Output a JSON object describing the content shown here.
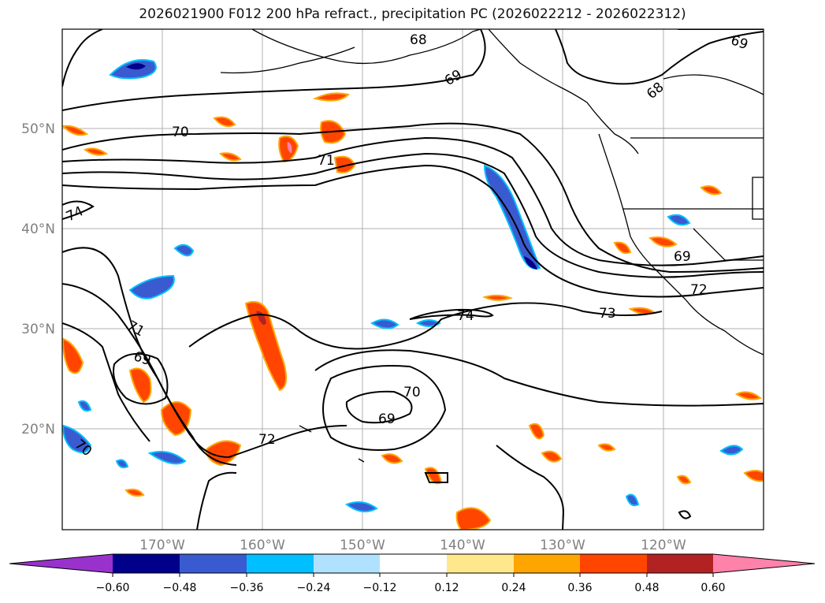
{
  "title": "2026021900 F012 200 hPa refract., precipitation PC (2026022212 - 2026022312)",
  "lat_labels": [
    "50°N",
    "40°N",
    "30°N",
    "20°N"
  ],
  "lon_labels": [
    "170°W",
    "160°W",
    "150°W",
    "140°W",
    "130°W",
    "120°W"
  ],
  "contour_labels": [
    "68",
    "69",
    "69",
    "68",
    "70",
    "71",
    "74",
    "69",
    "72",
    "73",
    "74",
    "71",
    "69",
    "70",
    "69",
    "72",
    "70"
  ],
  "colorbar": {
    "ticks": [
      "−0.60",
      "−0.48",
      "−0.36",
      "−0.24",
      "−0.12",
      "0.12",
      "0.24",
      "0.36",
      "0.48",
      "0.60"
    ],
    "colors": [
      "#9932cc",
      "#00008b",
      "#3a5ad0",
      "#00bfff",
      "#b0e2ff",
      "#ffffff",
      "#ffe88c",
      "#ffa500",
      "#ff4500",
      "#b22222",
      "#ff82ab"
    ]
  }
}
